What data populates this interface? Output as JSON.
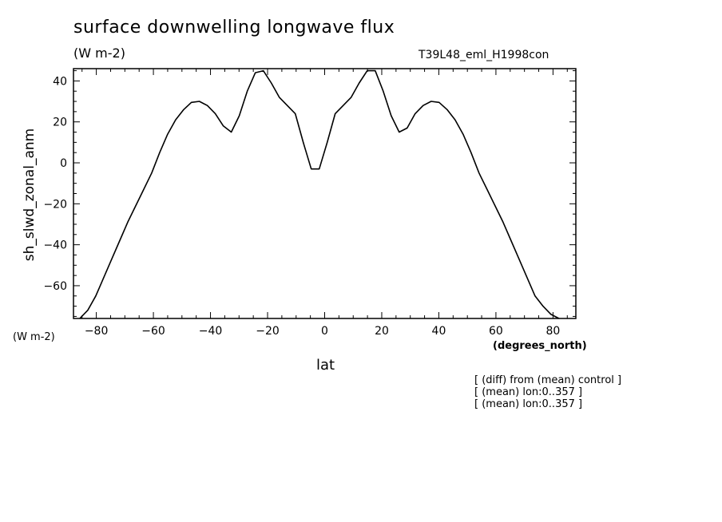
{
  "header": {
    "title": "surface downwelling longwave flux",
    "units": "(W m-2)",
    "run_id": "T39L48_eml_H1998con"
  },
  "axes": {
    "y_units": "(W m-2)",
    "x_units": "(degrees_north)"
  },
  "notes": [
    "[ (diff) from (mean) control ]",
    "[ (mean) lon:0..357 ]",
    "[ (mean) lon:0..357 ]"
  ],
  "chart_data": {
    "type": "line",
    "title": "surface downwelling longwave flux",
    "xlabel": "lat",
    "ylabel": "sh_slwd_zonal_anm",
    "xlim": [
      -88,
      88
    ],
    "ylim": [
      -76,
      46
    ],
    "xticks": [
      -80,
      -60,
      -40,
      -20,
      0,
      20,
      40,
      60,
      80
    ],
    "yticks": [
      -60,
      -40,
      -20,
      0,
      20,
      40
    ],
    "xtick_labels": [
      "-80",
      "-60",
      "-40",
      "-20",
      "0",
      "20",
      "40",
      "60",
      "80"
    ],
    "ytick_labels": [
      "-60",
      "-40",
      "-20",
      "0",
      "20",
      "40"
    ],
    "grid": false,
    "series": [
      {
        "x": [
          -85.8,
          -83,
          -80.2,
          -77.4,
          -74.6,
          -71.8,
          -69,
          -66.2,
          -63.4,
          -60.6,
          -57.8,
          -55,
          -52.2,
          -49.4,
          -46.7,
          -43.9,
          -41.1,
          -38.3,
          -35.5,
          -32.7,
          -29.9,
          -27.1,
          -24.3,
          -21.5,
          -18.7,
          -15.9,
          -13.1,
          -10.3,
          -7.5,
          -4.7,
          -1.9,
          0.9,
          3.7,
          6.5,
          9.3,
          12.1,
          14.9,
          17.7,
          20.5,
          23.3,
          26.1,
          28.9,
          31.7,
          34.5,
          37.3,
          40.1,
          42.9,
          45.7,
          48.5,
          51.3,
          54.1,
          56.9,
          59.7,
          62.5,
          65.3,
          68.1,
          70.9,
          73.7,
          76.5,
          79.3,
          82.1,
          84.9
        ],
        "values": [
          -76,
          -72,
          -65,
          -56,
          -47,
          -38,
          -29,
          -21,
          -13,
          -5,
          5,
          14,
          21,
          26,
          29.5,
          30,
          28,
          24,
          18,
          15,
          23,
          35,
          44,
          45,
          39,
          32,
          28,
          24,
          10,
          -3,
          -3,
          10,
          24,
          28,
          32,
          39,
          45,
          45,
          35,
          23,
          15,
          17,
          24,
          28,
          30,
          29.5,
          26,
          21,
          14,
          5,
          -5,
          -13,
          -21,
          -29,
          -38,
          -47,
          -56,
          -65,
          -70,
          -74,
          -76,
          -77
        ]
      }
    ]
  }
}
